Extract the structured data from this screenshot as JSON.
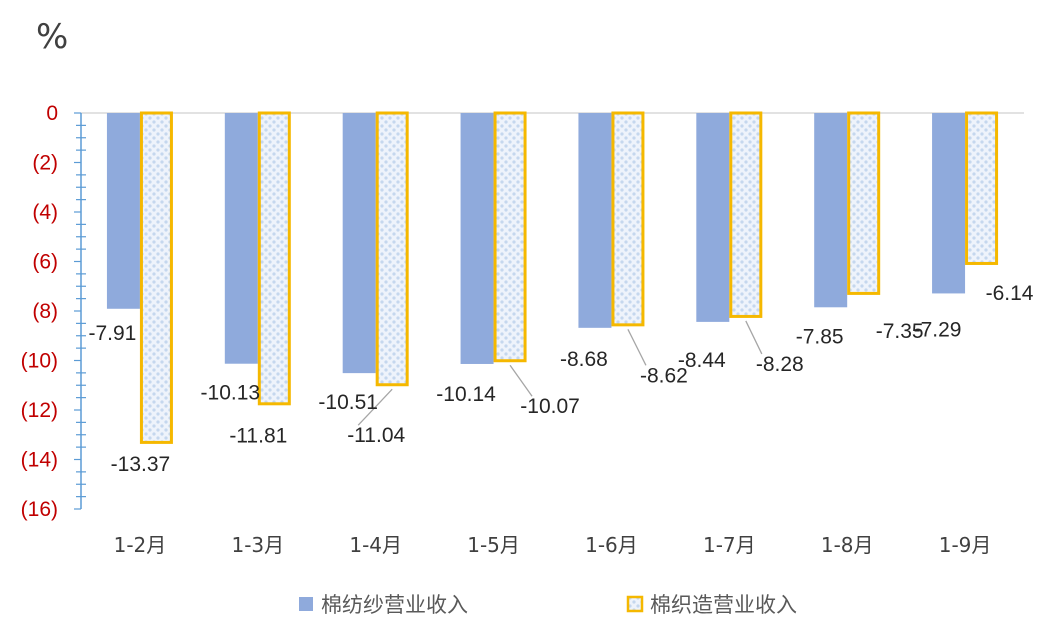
{
  "chart_data": {
    "type": "bar",
    "unit_label": "%",
    "categories": [
      "1-2月",
      "1-3月",
      "1-4月",
      "1-5月",
      "1-6月",
      "1-7月",
      "1-8月",
      "1-9月"
    ],
    "series": [
      {
        "name": "棉纺纱营业收入",
        "values": [
          -7.91,
          -10.13,
          -10.51,
          -10.14,
          -8.68,
          -8.44,
          -7.85,
          -7.29
        ],
        "color": "#8faadc",
        "style": "solid"
      },
      {
        "name": "棉织造营业收入",
        "values": [
          -13.37,
          -11.81,
          -11.04,
          -10.07,
          -8.62,
          -8.28,
          -7.35,
          -6.14
        ],
        "color": "#f5b800",
        "style": "dotted-pattern"
      }
    ],
    "data_labels": [
      [
        "-7.91",
        "-10.13",
        "-10.51",
        "-10.14",
        "-8.68",
        "-8.44",
        "-7.85",
        "-7.29"
      ],
      [
        "-13.37",
        "-11.81",
        "-11.04",
        "-10.07",
        "-8.62",
        "-8.28",
        "-7.35",
        "-6.14"
      ]
    ],
    "yticks": [
      0,
      -2,
      -4,
      -6,
      -8,
      -10,
      -12,
      -14,
      -16
    ],
    "ytick_labels": [
      "0",
      "(2)",
      "(4)",
      "(6)",
      "(8)",
      "(10)",
      "(12)",
      "(14)",
      "(16)"
    ],
    "ylim": [
      -16,
      0
    ],
    "ytick_color": "#c00000",
    "axis_color": "#5b9bd5",
    "legend_position": "bottom",
    "grid": false
  }
}
